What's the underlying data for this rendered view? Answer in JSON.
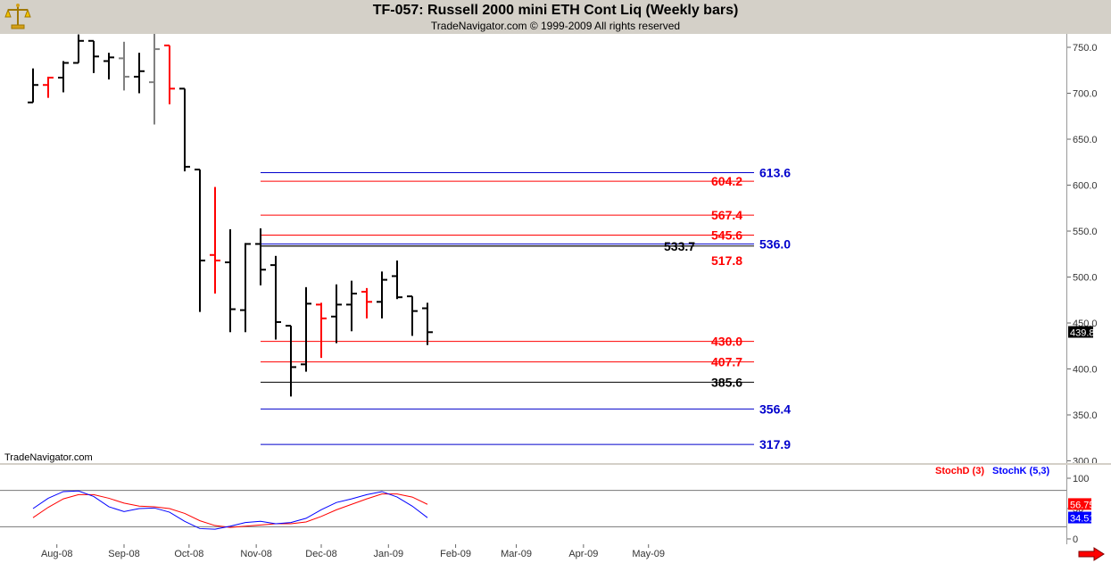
{
  "header": {
    "title": "TF-057:  Russell 2000 mini ETH Cont Liq  (Weekly bars)",
    "subtitle": "TradeNavigator.com © 1999-2009 All rights reserved",
    "logo_icon": "scales-icon"
  },
  "watermark": "TradeNavigator.com",
  "stoch_legend": {
    "d_label": "StochD (3)",
    "k_label": "StochK (5,3)",
    "d_color": "#ff0000",
    "k_color": "#0000ff"
  },
  "colors": {
    "up_bar": "#000000",
    "down_bar": "#ff0000",
    "neutral_bar": "#808080",
    "red_level": "#ff0000",
    "blue_level": "#0000cc",
    "black_level": "#000000"
  },
  "chart_data": [
    {
      "type": "ohlc",
      "y_ticks": [
        "750.0",
        "700.0",
        "650.0",
        "600.0",
        "550.0",
        "500.0",
        "450.0",
        "400.0",
        "350.0",
        "300.0"
      ],
      "x_ticks": [
        "Aug-08",
        "Sep-08",
        "Oct-08",
        "Nov-08",
        "Dec-08",
        "Jan-09",
        "Feb-09",
        "Mar-09",
        "Apr-09",
        "May-09"
      ],
      "ylim": [
        300,
        765
      ],
      "last_value": "439.8",
      "bars": [
        {
          "date": "2008-07-21",
          "o": 690,
          "h": 727,
          "l": 690,
          "c": 709,
          "color": "black"
        },
        {
          "date": "2008-07-28",
          "o": 709,
          "h": 718,
          "l": 695,
          "c": 717,
          "color": "red"
        },
        {
          "date": "2008-08-04",
          "o": 717,
          "h": 735,
          "l": 701,
          "c": 733,
          "color": "black"
        },
        {
          "date": "2008-08-11",
          "o": 733,
          "h": 764,
          "l": 733,
          "c": 757,
          "color": "black"
        },
        {
          "date": "2008-08-18",
          "o": 757,
          "h": 757,
          "l": 722,
          "c": 740,
          "color": "black"
        },
        {
          "date": "2008-08-25",
          "o": 735,
          "h": 744,
          "l": 715,
          "c": 739,
          "color": "black"
        },
        {
          "date": "2008-09-01",
          "o": 738,
          "h": 756,
          "l": 703,
          "c": 718,
          "color": "gray"
        },
        {
          "date": "2008-09-08",
          "o": 718,
          "h": 744,
          "l": 700,
          "c": 724,
          "color": "black"
        },
        {
          "date": "2008-09-15",
          "o": 712,
          "h": 766,
          "l": 666,
          "c": 748,
          "color": "gray"
        },
        {
          "date": "2008-09-22",
          "o": 752,
          "h": 752,
          "l": 688,
          "c": 705,
          "color": "red"
        },
        {
          "date": "2008-09-29",
          "o": 705,
          "h": 705,
          "l": 615,
          "c": 620,
          "color": "black"
        },
        {
          "date": "2008-10-06",
          "o": 617,
          "h": 617,
          "l": 462,
          "c": 518,
          "color": "black"
        },
        {
          "date": "2008-10-13",
          "o": 524,
          "h": 598,
          "l": 482,
          "c": 518,
          "color": "red"
        },
        {
          "date": "2008-10-20",
          "o": 516,
          "h": 552,
          "l": 440,
          "c": 465,
          "color": "black"
        },
        {
          "date": "2008-10-27",
          "o": 464,
          "h": 537,
          "l": 440,
          "c": 536,
          "color": "black"
        },
        {
          "date": "2008-11-03",
          "o": 536,
          "h": 553,
          "l": 491,
          "c": 508,
          "color": "black"
        },
        {
          "date": "2008-11-10",
          "o": 513,
          "h": 523,
          "l": 432,
          "c": 451,
          "color": "black"
        },
        {
          "date": "2008-11-17",
          "o": 447,
          "h": 447,
          "l": 370,
          "c": 402,
          "color": "black"
        },
        {
          "date": "2008-11-24",
          "o": 405,
          "h": 489,
          "l": 397,
          "c": 471,
          "color": "black"
        },
        {
          "date": "2008-12-01",
          "o": 470,
          "h": 472,
          "l": 412,
          "c": 455,
          "color": "red"
        },
        {
          "date": "2008-12-08",
          "o": 457,
          "h": 492,
          "l": 428,
          "c": 470,
          "color": "black"
        },
        {
          "date": "2008-12-15",
          "o": 470,
          "h": 496,
          "l": 441,
          "c": 482,
          "color": "black"
        },
        {
          "date": "2008-12-22",
          "o": 484,
          "h": 488,
          "l": 455,
          "c": 473,
          "color": "red"
        },
        {
          "date": "2008-12-29",
          "o": 473,
          "h": 506,
          "l": 455,
          "c": 497,
          "color": "black"
        },
        {
          "date": "2009-01-05",
          "o": 501,
          "h": 518,
          "l": 476,
          "c": 478,
          "color": "black"
        },
        {
          "date": "2009-01-12",
          "o": 479,
          "h": 479,
          "l": 436,
          "c": 463,
          "color": "black"
        },
        {
          "date": "2009-01-19",
          "o": 466,
          "h": 472,
          "l": 426,
          "c": 440,
          "color": "black"
        }
      ],
      "levels": [
        {
          "value": 613.6,
          "label": "613.6",
          "color": "blue"
        },
        {
          "value": 604.2,
          "label": "604.2",
          "color": "red"
        },
        {
          "value": 567.4,
          "label": "567.4",
          "color": "red"
        },
        {
          "value": 545.6,
          "label": "545.6",
          "color": "red"
        },
        {
          "value": 536.0,
          "label": "536.0",
          "color": "blue"
        },
        {
          "value": 533.7,
          "label": "533.7",
          "color": "black"
        },
        {
          "value": 517.8,
          "label": "517.8",
          "color": "red",
          "label_only": true
        },
        {
          "value": 430.0,
          "label": "430.0",
          "color": "red"
        },
        {
          "value": 407.7,
          "label": "407.7",
          "color": "red"
        },
        {
          "value": 385.6,
          "label": "385.6",
          "color": "black"
        },
        {
          "value": 356.4,
          "label": "356.4",
          "color": "blue"
        },
        {
          "value": 317.9,
          "label": "317.9",
          "color": "blue"
        }
      ]
    },
    {
      "type": "line",
      "y_ticks": [
        "100",
        "50",
        "0"
      ],
      "ylim": [
        -8,
        108
      ],
      "overbought": 80,
      "oversold": 20,
      "series": [
        {
          "name": "StochD (3)",
          "color": "#ff0000",
          "last_value": "56.75",
          "values": [
            35,
            52,
            66,
            73,
            73,
            67,
            59,
            54,
            53,
            50,
            42,
            30,
            22,
            19,
            21,
            23,
            25,
            25,
            28,
            37,
            48,
            57,
            66,
            74,
            74,
            69,
            57
          ]
        },
        {
          "name": "StochK (5,3)",
          "color": "#0000ff",
          "last_value": "34.51",
          "values": [
            50,
            67,
            78,
            79,
            70,
            53,
            45,
            50,
            51,
            44,
            29,
            17,
            16,
            21,
            27,
            29,
            25,
            27,
            34,
            48,
            60,
            66,
            73,
            78,
            69,
            54,
            35
          ]
        }
      ]
    }
  ]
}
